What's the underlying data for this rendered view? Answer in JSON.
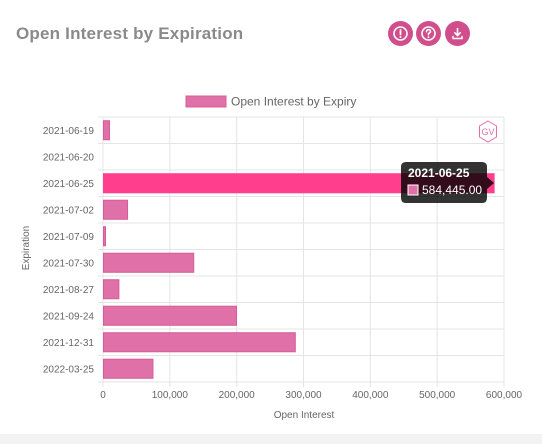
{
  "header": {
    "title": "Open Interest by Expiration",
    "buttons": [
      {
        "icon": "alert-icon"
      },
      {
        "icon": "help-icon"
      },
      {
        "icon": "download-icon"
      }
    ],
    "button_color": "#cf4e8b"
  },
  "watermark": {
    "text": "GV"
  },
  "tooltip": {
    "title": "2021-06-25",
    "value": "584,445.00"
  },
  "chart_data": {
    "type": "bar",
    "orientation": "horizontal",
    "categories": [
      "2021-06-19",
      "2021-06-20",
      "2021-06-25",
      "2021-07-02",
      "2021-07-09",
      "2021-07-30",
      "2021-08-27",
      "2021-09-24",
      "2021-12-31",
      "2022-03-25"
    ],
    "series": [
      {
        "name": "Open Interest by Expiry",
        "values": [
          9000,
          0,
          584445,
          36000,
          3000,
          135000,
          23000,
          199000,
          287000,
          74000
        ]
      }
    ],
    "highlighted_index": 2,
    "xlabel": "Open Interest",
    "ylabel": "Expiration",
    "xlim": [
      0,
      600000
    ],
    "xticks": [
      0,
      100000,
      200000,
      300000,
      400000,
      500000,
      600000
    ],
    "xtick_labels": [
      "0",
      "100,000",
      "200,000",
      "300,000",
      "400,000",
      "500,000",
      "600,000"
    ],
    "grid": true,
    "legend_position": "top",
    "colors": {
      "bar": "#e070a8",
      "bar_border": "#d85c98",
      "highlight": "#ff3e8e",
      "grid": "#e4e4e4"
    }
  }
}
